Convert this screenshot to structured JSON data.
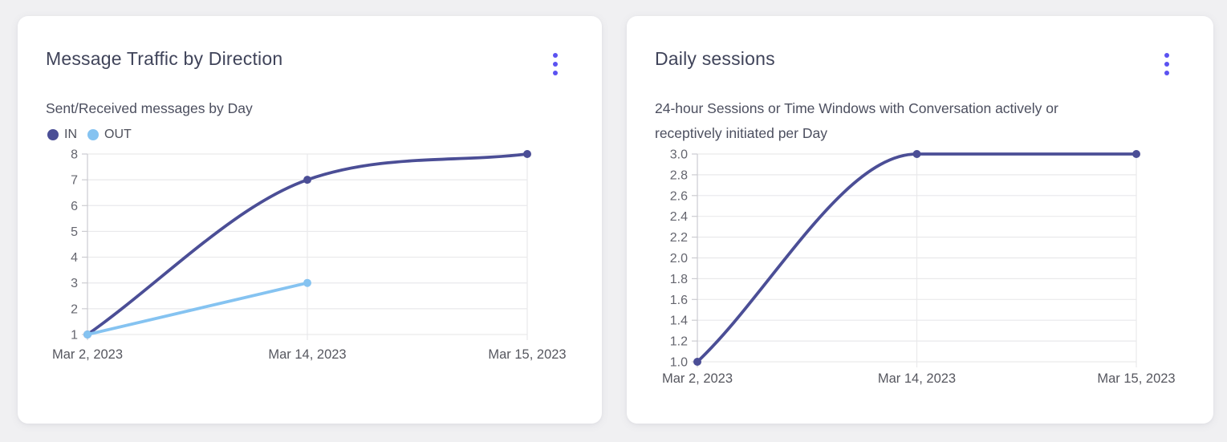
{
  "colors": {
    "page_bg": "#f0f0f2",
    "card_bg": "#ffffff",
    "accent": "#5b52f1",
    "grid": "#e9e9eb",
    "axis": "#ccccd1",
    "title_text": "#40445a",
    "subtitle_text": "#4c4f5f",
    "tick_text": "#64656e"
  },
  "chart_data": [
    {
      "type": "line",
      "title": "Message Traffic by Direction",
      "subtitle": "Sent/Received messages by Day",
      "categories": [
        "Mar 2, 2023",
        "Mar 14, 2023",
        "Mar 15, 2023"
      ],
      "series": [
        {
          "name": "IN",
          "color": "#4b4e96",
          "values": [
            1,
            7,
            8
          ]
        },
        {
          "name": "OUT",
          "color": "#85c3f1",
          "values": [
            1,
            3,
            null
          ]
        }
      ],
      "ylim": [
        1,
        8
      ],
      "y_ticks": [
        8,
        7,
        6,
        5,
        4,
        3,
        2,
        1
      ],
      "y_tick_labels": [
        "8",
        "7",
        "6",
        "5",
        "4",
        "3",
        "2",
        "1"
      ],
      "grid": true,
      "legend": true,
      "legend_position": "top-left",
      "curve": "monotone"
    },
    {
      "type": "line",
      "title": "Daily sessions",
      "subtitle": "24-hour Sessions or Time Windows with Conversation actively or\nreceptively initiated per Day",
      "categories": [
        "Mar 2, 2023",
        "Mar 14, 2023",
        "Mar 15, 2023"
      ],
      "series": [
        {
          "color": "#4b4e96",
          "values": [
            1.0,
            3.0,
            3.0
          ]
        }
      ],
      "ylim": [
        1.0,
        3.0
      ],
      "y_ticks": [
        3.0,
        2.8,
        2.6,
        2.4,
        2.2,
        2.0,
        1.8,
        1.6,
        1.4,
        1.2,
        1.0
      ],
      "y_tick_labels": [
        "3.0",
        "2.8",
        "2.6",
        "2.4",
        "2.2",
        "2.0",
        "1.8",
        "1.6",
        "1.4",
        "1.2",
        "1.0"
      ],
      "grid": true,
      "legend": false,
      "curve": "monotone"
    }
  ]
}
